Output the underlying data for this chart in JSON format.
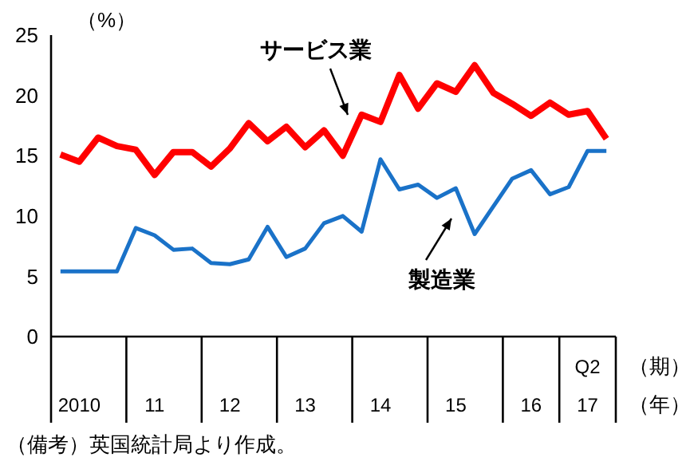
{
  "chart_data": {
    "type": "line",
    "ylabel": "（%）",
    "xlabel": "（年）",
    "categories": [
      null,
      "2010",
      null,
      null,
      null,
      "11",
      null,
      null,
      null,
      "12",
      null,
      null,
      null,
      "13",
      null,
      null,
      null,
      "14",
      null,
      null,
      null,
      "15",
      null,
      null,
      null,
      "16",
      null,
      null,
      "17",
      null
    ],
    "series": [
      {
        "name": "サービス業",
        "color": "#ff0000",
        "values": [
          15.1,
          14.5,
          16.5,
          15.8,
          15.5,
          13.4,
          15.3,
          15.3,
          14.1,
          15.6,
          17.7,
          16.2,
          17.4,
          15.7,
          17.1,
          15.0,
          18.4,
          17.8,
          21.7,
          18.9,
          21.0,
          20.3,
          22.5,
          20.2,
          19.3,
          18.3,
          19.4,
          18.4,
          18.7,
          16.4
        ]
      },
      {
        "name": "製造業",
        "color": "#1a72c8",
        "values": [
          5.4,
          5.4,
          5.4,
          5.4,
          9.0,
          8.4,
          7.2,
          7.3,
          6.1,
          6.0,
          6.4,
          9.1,
          6.6,
          7.3,
          9.4,
          10.0,
          8.7,
          14.7,
          12.2,
          12.6,
          11.5,
          12.3,
          8.5,
          10.8,
          13.1,
          13.8,
          11.8,
          12.4,
          15.4,
          15.4
        ]
      }
    ],
    "ylim": [
      0,
      25
    ],
    "yticks": [
      0,
      5,
      10,
      15,
      20,
      25
    ],
    "marker": "none",
    "line_style": "solid",
    "annotations": [
      "Q2",
      "（期）",
      "（備考）英国統計局より作成。"
    ]
  }
}
